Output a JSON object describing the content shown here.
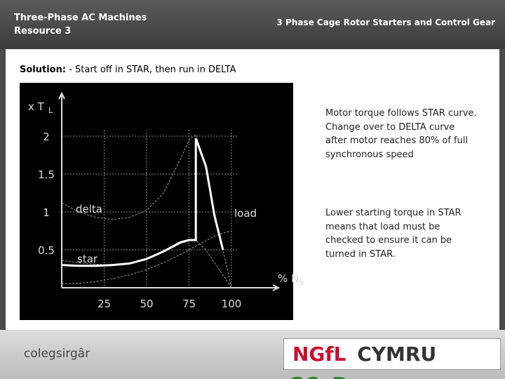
{
  "header": {
    "title_lines": [
      "Three-Phase AC Machines",
      "Resource 3"
    ],
    "subtitle": "3 Phase Cage Rotor Starters and Control Gear"
  },
  "solution": {
    "label": "Solution:",
    "text": "- Start off in STAR, then run in DELTA"
  },
  "notes": [
    [
      "Motor torque follows STAR curve.",
      "Change over to DELTA curve",
      "after motor reaches 80% of full",
      "synchronous speed"
    ],
    [
      "Lower starting torque in STAR",
      "means that load must be",
      "checked to ensure it can be",
      "turned in STAR."
    ]
  ],
  "chart_data": {
    "type": "line",
    "y_label": "x T",
    "y_label_sub": "L",
    "x_label": "% N",
    "x_label_sub": "S",
    "x": [
      0,
      10,
      20,
      30,
      40,
      50,
      60,
      70,
      75,
      79,
      79,
      85,
      90,
      95,
      100
    ],
    "series": [
      {
        "name": "delta",
        "color": "#9a9a9a",
        "dashed": true,
        "values": [
          1.12,
          1.0,
          0.93,
          0.9,
          0.93,
          1.02,
          1.25,
          1.7,
          1.95,
          2.02,
          2.02,
          1.6,
          1.0,
          0.5,
          0.0
        ]
      },
      {
        "name": "star",
        "color": "#9a9a9a",
        "dashed": true,
        "values": [
          0.36,
          0.33,
          0.31,
          0.3,
          0.32,
          0.37,
          0.47,
          0.58,
          0.62,
          0.63,
          0.63,
          0.5,
          0.33,
          0.17,
          0.0
        ]
      },
      {
        "name": "load",
        "color": "#9a9a9a",
        "dashed": true,
        "values": [
          0.05,
          0.06,
          0.08,
          0.12,
          0.17,
          0.24,
          0.33,
          0.44,
          0.5,
          0.55,
          0.55,
          0.62,
          0.68,
          0.72,
          0.75
        ]
      },
      {
        "color": "#ffffff",
        "dashed": false,
        "values": [
          0.3,
          0.29,
          0.29,
          0.3,
          0.32,
          0.38,
          0.48,
          0.6,
          0.63,
          0.63,
          1.97,
          1.6,
          0.95,
          0.5,
          null
        ]
      }
    ],
    "xlim": [
      0,
      125
    ],
    "ylim": [
      0,
      2.5
    ],
    "xticks": [
      25,
      50,
      75,
      100
    ],
    "yticks": [
      0.5,
      1,
      1.5,
      2
    ],
    "grid": true
  },
  "footer": {
    "college": "colegsirgâr",
    "logo_a": "NGfL",
    "logo_b": "CYMRU",
    "logo_c": "GCaD"
  }
}
